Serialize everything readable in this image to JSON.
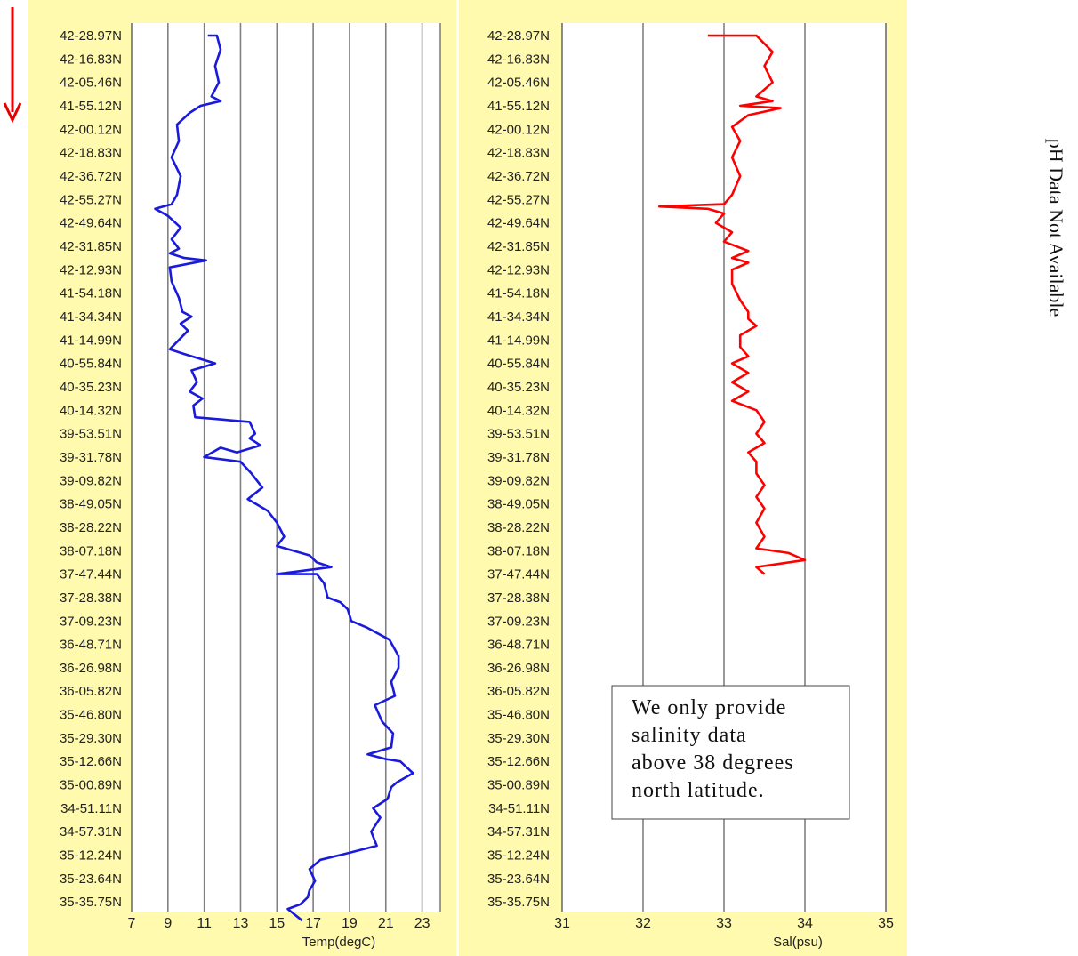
{
  "chart_data": [
    {
      "type": "line",
      "xlabel": "Temp(degC)",
      "xlim": [
        7,
        24
      ],
      "x_ticks": [
        7,
        9,
        11,
        13,
        15,
        17,
        19,
        21,
        23
      ],
      "y_tick_labels": [
        "42-28.97N",
        "42-16.83N",
        "42-05.46N",
        "41-55.12N",
        "42-00.12N",
        "42-18.83N",
        "42-36.72N",
        "42-55.27N",
        "42-49.64N",
        "42-31.85N",
        "42-12.93N",
        "41-54.18N",
        "41-34.34N",
        "41-14.99N",
        "40-55.84N",
        "40-35.23N",
        "40-14.32N",
        "39-53.51N",
        "39-31.78N",
        "39-09.82N",
        "38-49.05N",
        "38-28.22N",
        "38-07.18N",
        "37-47.44N",
        "37-28.38N",
        "37-09.23N",
        "36-48.71N",
        "36-26.98N",
        "36-05.82N",
        "35-46.80N",
        "35-29.30N",
        "35-12.66N",
        "35-00.89N",
        "34-51.11N",
        "34-57.31N",
        "35-12.24N",
        "35-23.64N",
        "35-35.75N"
      ],
      "series": [
        {
          "color": "#1a1adc",
          "points": [
            [
              11.2,
              0
            ],
            [
              11.7,
              0
            ],
            [
              11.9,
              0.6
            ],
            [
              11.6,
              1.3
            ],
            [
              11.8,
              2
            ],
            [
              11.4,
              2.6
            ],
            [
              11.9,
              2.8
            ],
            [
              10.8,
              3
            ],
            [
              10.2,
              3.3
            ],
            [
              9.5,
              3.8
            ],
            [
              9.6,
              4.5
            ],
            [
              9.2,
              5.2
            ],
            [
              9.7,
              6
            ],
            [
              9.5,
              6.8
            ],
            [
              9.2,
              7.2
            ],
            [
              8.3,
              7.4
            ],
            [
              9.0,
              7.7
            ],
            [
              9.7,
              8.2
            ],
            [
              9.2,
              8.7
            ],
            [
              9.6,
              9.1
            ],
            [
              9.1,
              9.3
            ],
            [
              9.9,
              9.5
            ],
            [
              11.1,
              9.6
            ],
            [
              9.1,
              9.9
            ],
            [
              9.2,
              10.5
            ],
            [
              9.6,
              11.2
            ],
            [
              9.8,
              11.8
            ],
            [
              10.3,
              12
            ],
            [
              9.7,
              12.3
            ],
            [
              10.1,
              12.6
            ],
            [
              9.6,
              13
            ],
            [
              9.1,
              13.4
            ],
            [
              9.9,
              13.6
            ],
            [
              11.6,
              14
            ],
            [
              10.3,
              14.3
            ],
            [
              10.6,
              14.8
            ],
            [
              10.2,
              15.2
            ],
            [
              10.9,
              15.5
            ],
            [
              10.4,
              15.8
            ],
            [
              10.5,
              16.3
            ],
            [
              13.5,
              16.5
            ],
            [
              13.8,
              17
            ],
            [
              13.5,
              17.2
            ],
            [
              14.1,
              17.5
            ],
            [
              12.8,
              17.8
            ],
            [
              11.9,
              17.6
            ],
            [
              11.0,
              18
            ],
            [
              13.0,
              18.2
            ],
            [
              13.6,
              18.7
            ],
            [
              14.2,
              19.3
            ],
            [
              13.4,
              19.8
            ],
            [
              14.5,
              20.3
            ],
            [
              15.0,
              20.8
            ],
            [
              15.4,
              21.4
            ],
            [
              15.0,
              21.8
            ],
            [
              16.8,
              22.2
            ],
            [
              17.2,
              22.5
            ],
            [
              18.0,
              22.7
            ],
            [
              15.0,
              23
            ],
            [
              17.2,
              23
            ],
            [
              17.6,
              23.4
            ],
            [
              17.8,
              24
            ],
            [
              18.5,
              24.2
            ],
            [
              18.9,
              24.5
            ],
            [
              19.1,
              25
            ],
            [
              20.0,
              25.3
            ],
            [
              21.2,
              25.8
            ],
            [
              21.7,
              26.5
            ],
            [
              21.7,
              27
            ],
            [
              21.3,
              27.6
            ],
            [
              21.5,
              28.2
            ],
            [
              20.4,
              28.6
            ],
            [
              20.8,
              29.3
            ],
            [
              21.4,
              29.8
            ],
            [
              21.3,
              30.4
            ],
            [
              20.0,
              30.7
            ],
            [
              21.0,
              30.9
            ],
            [
              21.8,
              31
            ],
            [
              22.5,
              31.5
            ],
            [
              21.6,
              31.9
            ],
            [
              21.3,
              32.1
            ],
            [
              21.1,
              32.6
            ],
            [
              20.3,
              33
            ],
            [
              20.7,
              33.4
            ],
            [
              20.2,
              34
            ],
            [
              20.5,
              34.6
            ],
            [
              19.0,
              34.9
            ],
            [
              17.4,
              35.2
            ],
            [
              16.8,
              35.6
            ],
            [
              17.1,
              36.1
            ],
            [
              16.8,
              36.5
            ],
            [
              16.7,
              36.8
            ],
            [
              16.3,
              37.1
            ],
            [
              15.6,
              37.3
            ],
            [
              16.4,
              37.8
            ]
          ]
        }
      ]
    },
    {
      "type": "line",
      "xlabel": "Sal(psu)",
      "xlim": [
        31,
        35
      ],
      "x_ticks": [
        31,
        32,
        33,
        34,
        35
      ],
      "y_tick_labels": [
        "42-28.97N",
        "42-16.83N",
        "42-05.46N",
        "41-55.12N",
        "42-00.12N",
        "42-18.83N",
        "42-36.72N",
        "42-55.27N",
        "42-49.64N",
        "42-31.85N",
        "42-12.93N",
        "41-54.18N",
        "41-34.34N",
        "41-14.99N",
        "40-55.84N",
        "40-35.23N",
        "40-14.32N",
        "39-53.51N",
        "39-31.78N",
        "39-09.82N",
        "38-49.05N",
        "38-28.22N",
        "38-07.18N",
        "37-47.44N",
        "37-28.38N",
        "37-09.23N",
        "36-48.71N",
        "36-26.98N",
        "36-05.82N",
        "35-46.80N",
        "35-29.30N",
        "35-12.66N",
        "35-00.89N",
        "34-51.11N",
        "34-57.31N",
        "35-12.24N",
        "35-23.64N",
        "35-35.75N"
      ],
      "series": [
        {
          "color": "#ff0000",
          "points": [
            [
              32.8,
              0
            ],
            [
              33.4,
              0
            ],
            [
              33.6,
              0.7
            ],
            [
              33.5,
              1.3
            ],
            [
              33.6,
              2
            ],
            [
              33.4,
              2.6
            ],
            [
              33.6,
              2.8
            ],
            [
              33.2,
              3
            ],
            [
              33.7,
              3.1
            ],
            [
              33.3,
              3.4
            ],
            [
              33.1,
              3.9
            ],
            [
              33.2,
              4.5
            ],
            [
              33.1,
              5.2
            ],
            [
              33.2,
              6
            ],
            [
              33.1,
              6.8
            ],
            [
              33.0,
              7.2
            ],
            [
              32.2,
              7.3
            ],
            [
              32.8,
              7.4
            ],
            [
              33.0,
              7.6
            ],
            [
              32.9,
              8.0
            ],
            [
              33.1,
              8.4
            ],
            [
              33.0,
              8.8
            ],
            [
              33.3,
              9.2
            ],
            [
              33.1,
              9.5
            ],
            [
              33.3,
              9.7
            ],
            [
              33.1,
              10
            ],
            [
              33.1,
              10.6
            ],
            [
              33.2,
              11.3
            ],
            [
              33.3,
              11.8
            ],
            [
              33.3,
              12.1
            ],
            [
              33.4,
              12.4
            ],
            [
              33.2,
              12.8
            ],
            [
              33.2,
              13.3
            ],
            [
              33.3,
              13.7
            ],
            [
              33.1,
              14
            ],
            [
              33.3,
              14.4
            ],
            [
              33.1,
              14.8
            ],
            [
              33.3,
              15.2
            ],
            [
              33.1,
              15.6
            ],
            [
              33.4,
              16
            ],
            [
              33.5,
              16.5
            ],
            [
              33.4,
              17
            ],
            [
              33.5,
              17.4
            ],
            [
              33.3,
              17.8
            ],
            [
              33.4,
              18.2
            ],
            [
              33.4,
              18.7
            ],
            [
              33.5,
              19.2
            ],
            [
              33.4,
              19.7
            ],
            [
              33.5,
              20.2
            ],
            [
              33.4,
              20.8
            ],
            [
              33.5,
              21.4
            ],
            [
              33.4,
              21.9
            ],
            [
              33.8,
              22.1
            ],
            [
              34.0,
              22.4
            ],
            [
              33.4,
              22.7
            ],
            [
              33.5,
              23
            ]
          ]
        }
      ]
    }
  ],
  "ph_text": "pH Data Not Available",
  "note": {
    "lines": [
      "We only provide",
      "salinity data",
      "above 38 degrees",
      "north latitude."
    ]
  },
  "colors": {
    "panel_bg": "#fffaae",
    "arrow": "#e60000"
  }
}
